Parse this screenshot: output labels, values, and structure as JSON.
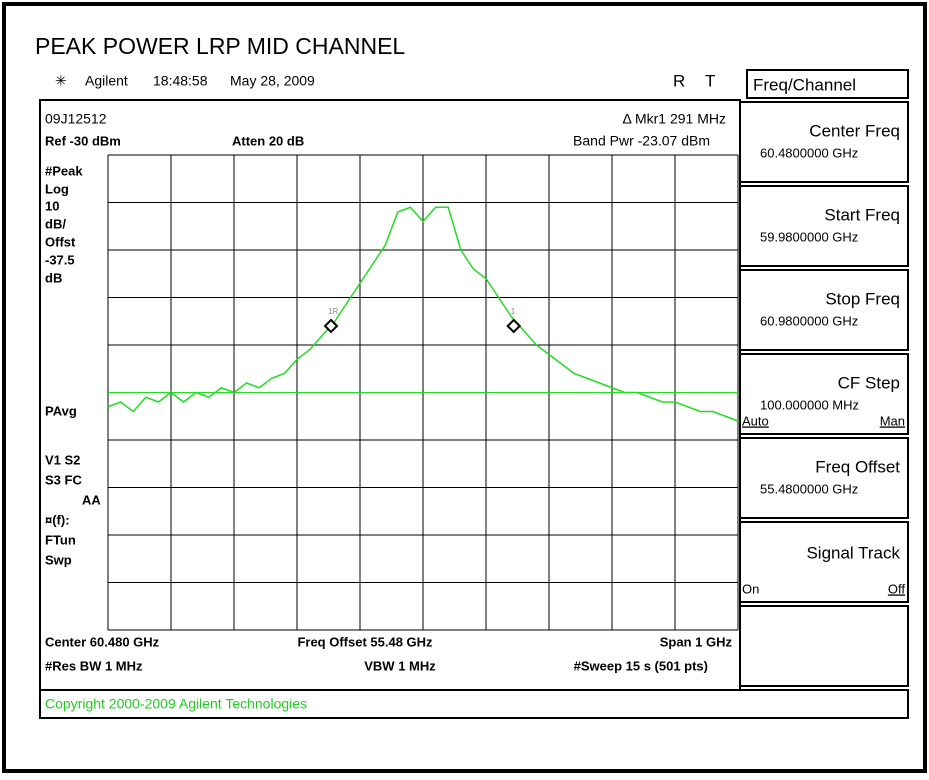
{
  "header": {
    "title": "PEAK POWER LRP MID CHANNEL",
    "brand": "Agilent",
    "time": "18:48:58",
    "date": "May 28, 2009",
    "r": "R",
    "t": "T"
  },
  "screen": {
    "id": "09J12512",
    "ref": "Ref -30 dBm",
    "atten": "Atten 20 dB",
    "marker_delta": "Δ Mkr1  291 MHz",
    "band_pwr": "Band Pwr  -23.07 dBm",
    "left_labels": [
      "#Peak",
      "Log",
      "10",
      "dB/",
      "Offst",
      "-37.5",
      "dB",
      "PAvg",
      "V1  S2",
      "S3  FC",
      "AA",
      "¤(f):",
      "FTun",
      "Swp"
    ],
    "center": "Center 60.480 GHz",
    "freq_offset": "Freq Offset 55.48 GHz",
    "span": "Span 1 GHz",
    "res_bw": "#Res BW 1 MHz",
    "vbw": "VBW 1 MHz",
    "sweep": "#Sweep 15 s (501 pts)"
  },
  "chart_data": {
    "type": "line",
    "color": "#22dd22",
    "xlim": [
      59.98,
      60.98
    ],
    "ylim": [
      -130,
      -30
    ],
    "display_line": -80,
    "x": [
      59.98,
      60.0,
      60.02,
      60.04,
      60.06,
      60.08,
      60.1,
      60.12,
      60.14,
      60.16,
      60.18,
      60.2,
      60.22,
      60.24,
      60.26,
      60.28,
      60.3,
      60.32,
      60.34,
      60.36,
      60.38,
      60.4,
      60.42,
      60.44,
      60.46,
      60.48,
      60.5,
      60.52,
      60.54,
      60.56,
      60.58,
      60.6,
      60.62,
      60.64,
      60.66,
      60.68,
      60.7,
      60.72,
      60.74,
      60.76,
      60.78,
      60.8,
      60.82,
      60.84,
      60.86,
      60.88,
      60.9,
      60.92,
      60.94,
      60.96,
      60.98
    ],
    "series": [
      {
        "values": [
          -83,
          -82,
          -84,
          -81,
          -82,
          -80,
          -82,
          -80,
          -81,
          -79,
          -80,
          -78,
          -79,
          -77,
          -76,
          -73,
          -71,
          -68,
          -65,
          -61,
          -57,
          -53,
          -49,
          -42,
          -41,
          -44,
          -41,
          -41,
          -50,
          -54,
          -56,
          -60,
          -64,
          -67,
          -70,
          -72,
          -74,
          -76,
          -77,
          -78,
          -79,
          -80,
          -80,
          -81,
          -82,
          -82,
          -83,
          -84,
          -84,
          -85,
          -86
        ]
      }
    ],
    "markers": [
      {
        "label": "1R",
        "x": 60.334,
        "y": -66
      },
      {
        "label": "1",
        "x": 60.624,
        "y": -66
      }
    ]
  },
  "softkeys": {
    "menu": "Freq/Channel",
    "keys": [
      {
        "label": "Center Freq",
        "value": "60.4800000 GHz"
      },
      {
        "label": "Start Freq",
        "value": "59.9800000 GHz"
      },
      {
        "label": "Stop Freq",
        "value": "60.9800000 GHz"
      },
      {
        "label": "CF Step",
        "value": "100.000000 MHz",
        "left": "Auto",
        "right": "Man"
      },
      {
        "label": "Freq Offset",
        "value": "55.4800000 GHz"
      },
      {
        "label": "Signal Track",
        "left": "On",
        "right": "Off"
      }
    ]
  },
  "footer": {
    "copyright": "Copyright 2000-2009 Agilent Technologies"
  }
}
